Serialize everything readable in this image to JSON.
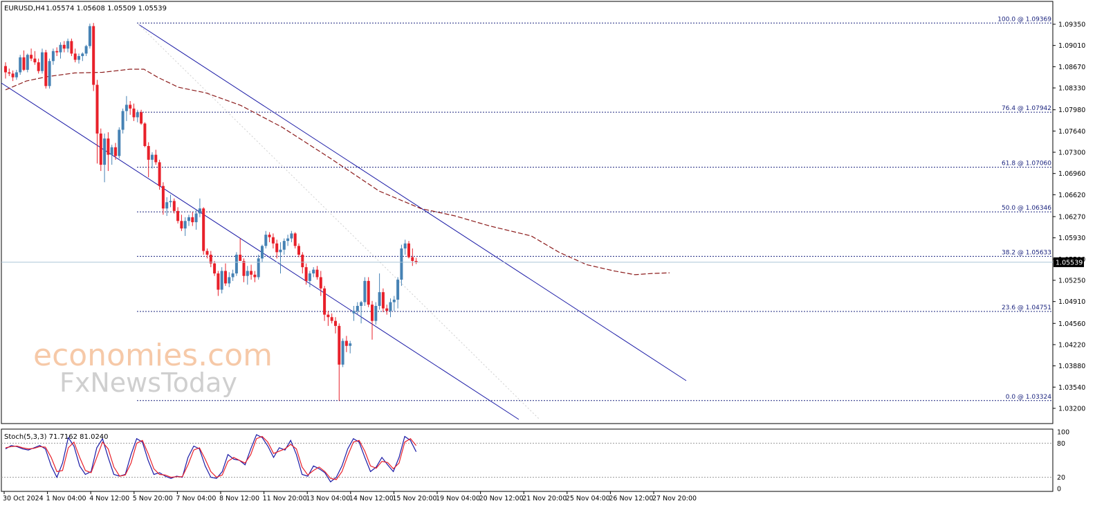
{
  "header": {
    "symbol": "EURUSD,H4",
    "ohlc": "1.05574 1.05608 1.05509 1.05539"
  },
  "watermark": {
    "line1": "economies.com",
    "line2": "FxNewsToday"
  },
  "chart_data": [
    {
      "type": "candlestick",
      "title": "EURUSD,H4",
      "ylim": [
        1.032,
        1.0955
      ],
      "y_ticks": [
        "1.09350",
        "1.09010",
        "1.08670",
        "1.08330",
        "1.07980",
        "1.07640",
        "1.07300",
        "1.06960",
        "1.06620",
        "1.06270",
        "1.05930",
        "1.05590",
        "1.05250",
        "1.04910",
        "1.04560",
        "1.04220",
        "1.03880",
        "1.03540",
        "1.03200"
      ],
      "x_ticks": [
        "30 Oct 2024",
        "1 Nov 04:00",
        "4 Nov 12:00",
        "5 Nov 20:00",
        "7 Nov 04:00",
        "8 Nov 12:00",
        "11 Nov 20:00",
        "13 Nov 04:00",
        "14 Nov 12:00",
        "15 Nov 20:00",
        "19 Nov 04:00",
        "20 Nov 12:00",
        "21 Nov 20:00",
        "25 Nov 04:00",
        "26 Nov 12:00",
        "27 Nov 20:00"
      ],
      "current_price": "1.05539",
      "colors": {
        "up": "#4682b4",
        "down": "#e8202a",
        "fib": "#1a237e",
        "channel": "#1a1aa6",
        "ma": "#8b1a1a"
      },
      "fibonacci": [
        {
          "label": "100.0 @ 1.09369",
          "value": 1.09369
        },
        {
          "label": "76.4 @ 1.07942",
          "value": 1.07942
        },
        {
          "label": "61.8 @ 1.07060",
          "value": 1.0706
        },
        {
          "label": "50.0 @ 1.06346",
          "value": 1.06346
        },
        {
          "label": "38.2 @ 1.05633",
          "value": 1.05633
        },
        {
          "label": "23.6 @ 1.04751",
          "value": 1.04751
        },
        {
          "label": "0.0 @ 1.03324",
          "value": 1.03324
        }
      ],
      "candles": [
        [
          1.0868,
          1.0874,
          1.0848,
          1.0858
        ],
        [
          1.0858,
          1.0864,
          1.0852,
          1.0856
        ],
        [
          1.0856,
          1.0861,
          1.0844,
          1.085
        ],
        [
          1.085,
          1.0862,
          1.0846,
          1.0858
        ],
        [
          1.0858,
          1.0886,
          1.0854,
          1.0882
        ],
        [
          1.0882,
          1.0893,
          1.086,
          1.0862
        ],
        [
          1.0862,
          1.0888,
          1.0858,
          1.0886
        ],
        [
          1.0886,
          1.0896,
          1.0876,
          1.088
        ],
        [
          1.088,
          1.0892,
          1.087,
          1.0874
        ],
        [
          1.0874,
          1.088,
          1.0856,
          1.086
        ],
        [
          1.086,
          1.0896,
          1.0856,
          1.089
        ],
        [
          1.089,
          1.0894,
          1.0832,
          1.0836
        ],
        [
          1.0836,
          1.088,
          1.0832,
          1.0876
        ],
        [
          1.0876,
          1.0896,
          1.087,
          1.0892
        ],
        [
          1.0892,
          1.0898,
          1.0884,
          1.089
        ],
        [
          1.089,
          1.0906,
          1.088,
          1.0902
        ],
        [
          1.0902,
          1.0908,
          1.089,
          1.0896
        ],
        [
          1.0896,
          1.0912,
          1.089,
          1.0908
        ],
        [
          1.0908,
          1.0912,
          1.0884,
          1.0888
        ],
        [
          1.0888,
          1.0896,
          1.0874,
          1.0878
        ],
        [
          1.0878,
          1.0888,
          1.0872,
          1.0884
        ],
        [
          1.0884,
          1.089,
          1.0876,
          1.0888
        ],
        [
          1.0888,
          1.0902,
          1.0884,
          1.09
        ],
        [
          1.09,
          1.0936,
          1.0896,
          1.0932
        ],
        [
          1.0932,
          1.0937,
          1.0828,
          1.0838
        ],
        [
          1.0838,
          1.0846,
          1.0712,
          1.076
        ],
        [
          1.076,
          1.0768,
          1.07,
          1.071
        ],
        [
          1.071,
          1.076,
          1.0682,
          1.0752
        ],
        [
          1.0752,
          1.0762,
          1.07,
          1.0726
        ],
        [
          1.0726,
          1.0742,
          1.071,
          1.0738
        ],
        [
          1.0738,
          1.0745,
          1.0718,
          1.0724
        ],
        [
          1.0724,
          1.077,
          1.072,
          1.0766
        ],
        [
          1.0766,
          1.08,
          1.076,
          1.0796
        ],
        [
          1.0796,
          1.082,
          1.078,
          1.0806
        ],
        [
          1.0806,
          1.0812,
          1.079,
          1.08
        ],
        [
          1.08,
          1.0808,
          1.078,
          1.0786
        ],
        [
          1.0786,
          1.0798,
          1.0778,
          1.0794
        ],
        [
          1.0794,
          1.0798,
          1.0774,
          1.0776
        ],
        [
          1.0776,
          1.0778,
          1.0738,
          1.074
        ],
        [
          1.074,
          1.0746,
          1.069,
          1.0718
        ],
        [
          1.0718,
          1.073,
          1.0704,
          1.0726
        ],
        [
          1.0726,
          1.0734,
          1.071,
          1.0714
        ],
        [
          1.0714,
          1.0718,
          1.067,
          1.0676
        ],
        [
          1.0676,
          1.0682,
          1.063,
          1.064
        ],
        [
          1.064,
          1.0658,
          1.0628,
          1.065
        ],
        [
          1.065,
          1.0662,
          1.0642,
          1.0652
        ],
        [
          1.0652,
          1.0656,
          1.0632,
          1.0636
        ],
        [
          1.0636,
          1.0642,
          1.0616,
          1.062
        ],
        [
          1.062,
          1.063,
          1.0604,
          1.0608
        ],
        [
          1.0608,
          1.0626,
          1.0596,
          1.062
        ],
        [
          1.062,
          1.063,
          1.0612,
          1.0626
        ],
        [
          1.0626,
          1.0634,
          1.0612,
          1.0618
        ],
        [
          1.0618,
          1.0638,
          1.0606,
          1.0632
        ],
        [
          1.0632,
          1.0656,
          1.0626,
          1.064
        ],
        [
          1.064,
          1.0642,
          1.0566,
          1.0572
        ],
        [
          1.0572,
          1.0576,
          1.056,
          1.0566
        ],
        [
          1.0566,
          1.0572,
          1.0546,
          1.0552
        ],
        [
          1.0552,
          1.0556,
          1.0532,
          1.0536
        ],
        [
          1.0536,
          1.054,
          1.05,
          1.051
        ],
        [
          1.051,
          1.0546,
          1.0504,
          1.054
        ],
        [
          1.054,
          1.0552,
          1.0516,
          1.052
        ],
        [
          1.052,
          1.0538,
          1.0514,
          1.053
        ],
        [
          1.053,
          1.0542,
          1.0524,
          1.0536
        ],
        [
          1.0536,
          1.057,
          1.0532,
          1.0566
        ],
        [
          1.0566,
          1.0592,
          1.0556,
          1.0556
        ],
        [
          1.0556,
          1.056,
          1.0522,
          1.0532
        ],
        [
          1.0532,
          1.0548,
          1.0518,
          1.054
        ],
        [
          1.054,
          1.055,
          1.0526,
          1.0534
        ],
        [
          1.0534,
          1.054,
          1.0522,
          1.053
        ],
        [
          1.053,
          1.0566,
          1.0526,
          1.056
        ],
        [
          1.056,
          1.0582,
          1.0554,
          1.058
        ],
        [
          1.058,
          1.0604,
          1.0576,
          1.0598
        ],
        [
          1.0598,
          1.0602,
          1.0586,
          1.0594
        ],
        [
          1.0594,
          1.06,
          1.0576,
          1.0584
        ],
        [
          1.0584,
          1.059,
          1.056,
          1.057
        ],
        [
          1.057,
          1.0586,
          1.0536,
          1.0574
        ],
        [
          1.0574,
          1.0592,
          1.0566,
          1.0588
        ],
        [
          1.0588,
          1.0598,
          1.058,
          1.0592
        ],
        [
          1.0592,
          1.0604,
          1.0586,
          1.06
        ],
        [
          1.06,
          1.0602,
          1.0576,
          1.058
        ],
        [
          1.058,
          1.0584,
          1.0562,
          1.0566
        ],
        [
          1.0566,
          1.057,
          1.0536,
          1.0546
        ],
        [
          1.0546,
          1.0552,
          1.0518,
          1.0524
        ],
        [
          1.0524,
          1.054,
          1.0514,
          1.0536
        ],
        [
          1.0536,
          1.0546,
          1.053,
          1.0542
        ],
        [
          1.0542,
          1.0548,
          1.0526,
          1.053
        ],
        [
          1.053,
          1.054,
          1.05,
          1.0512
        ],
        [
          1.0512,
          1.0516,
          1.046,
          1.047
        ],
        [
          1.047,
          1.0476,
          1.0452,
          1.0466
        ],
        [
          1.0466,
          1.0472,
          1.0456,
          1.046
        ],
        [
          1.046,
          1.0466,
          1.044,
          1.0452
        ],
        [
          1.0452,
          1.0456,
          1.0332,
          1.039
        ],
        [
          1.039,
          1.0432,
          1.0386,
          1.0428
        ],
        [
          1.0428,
          1.0436,
          1.041,
          1.042
        ],
        [
          1.042,
          1.0428,
          1.0408,
          1.0424
        ],
        [
          1.0472,
          1.0484,
          1.046,
          1.0476
        ],
        [
          1.0476,
          1.049,
          1.047,
          1.0484
        ],
        [
          1.0484,
          1.0492,
          1.0456,
          1.049
        ],
        [
          1.049,
          1.053,
          1.0484,
          1.0524
        ],
        [
          1.0524,
          1.053,
          1.0482,
          1.0486
        ],
        [
          1.0486,
          1.0492,
          1.043,
          1.046
        ],
        [
          1.046,
          1.049,
          1.0454,
          1.0484
        ],
        [
          1.0484,
          1.0536,
          1.0478,
          1.0506
        ],
        [
          1.0506,
          1.0512,
          1.0474,
          1.048
        ],
        [
          1.048,
          1.0486,
          1.047,
          1.0476
        ],
        [
          1.0476,
          1.0496,
          1.0466,
          1.049
        ],
        [
          1.049,
          1.05,
          1.0476,
          1.0494
        ],
        [
          1.0494,
          1.053,
          1.048,
          1.0526
        ],
        [
          1.0526,
          1.0582,
          1.0516,
          1.0576
        ],
        [
          1.0576,
          1.059,
          1.0566,
          1.0584
        ],
        [
          1.0584,
          1.0588,
          1.056,
          1.0562
        ],
        [
          1.0562,
          1.0576,
          1.0548,
          1.0556
        ],
        [
          1.0556,
          1.0561,
          1.0551,
          1.0554
        ]
      ],
      "moving_average": [
        [
          0,
          1.083
        ],
        [
          30,
          1.0844
        ],
        [
          60,
          1.0851
        ],
        [
          100,
          1.0857
        ],
        [
          140,
          1.0858
        ],
        [
          180,
          1.0863
        ],
        [
          200,
          1.0863
        ],
        [
          220,
          1.085
        ],
        [
          250,
          1.0834
        ],
        [
          290,
          1.0825
        ],
        [
          340,
          1.0805
        ],
        [
          400,
          1.077
        ],
        [
          470,
          1.072
        ],
        [
          540,
          1.0668
        ],
        [
          600,
          1.064
        ],
        [
          650,
          1.0628
        ],
        [
          700,
          1.0612
        ],
        [
          760,
          1.0596
        ],
        [
          800,
          1.057
        ],
        [
          840,
          1.055
        ],
        [
          880,
          1.054
        ],
        [
          910,
          1.0534
        ],
        [
          935,
          1.0536
        ],
        [
          960,
          1.0537
        ]
      ]
    },
    {
      "type": "line",
      "title": "Stoch(5,3,3) 71.7162 81.0240",
      "ylim": [
        0,
        100
      ],
      "y_ticks": [
        "100",
        "80",
        "20",
        "0"
      ],
      "levels": [
        80,
        20
      ],
      "series": [
        {
          "name": "Stoch",
          "color": "#1a1aa6",
          "values": [
            70,
            76,
            74,
            70,
            68,
            72,
            76,
            70,
            40,
            20,
            45,
            90,
            75,
            40,
            25,
            30,
            72,
            88,
            55,
            25,
            22,
            25,
            60,
            88,
            82,
            50,
            25,
            28,
            22,
            18,
            22,
            20,
            55,
            75,
            70,
            40,
            20,
            18,
            30,
            60,
            52,
            50,
            42,
            70,
            95,
            90,
            75,
            55,
            72,
            68,
            85,
            60,
            25,
            22,
            40,
            35,
            28,
            12,
            20,
            40,
            70,
            88,
            82,
            55,
            30,
            38,
            55,
            42,
            30,
            55,
            92,
            85,
            65
          ]
        },
        {
          "name": "Signal",
          "color": "#e8202a",
          "values": [
            72,
            74,
            75,
            72,
            70,
            71,
            74,
            73,
            55,
            30,
            32,
            72,
            82,
            55,
            32,
            28,
            55,
            82,
            70,
            38,
            22,
            24,
            45,
            80,
            85,
            62,
            35,
            25,
            24,
            20,
            21,
            21,
            42,
            68,
            72,
            52,
            30,
            20,
            24,
            48,
            55,
            50,
            45,
            60,
            88,
            92,
            82,
            62,
            66,
            70,
            78,
            70,
            38,
            24,
            32,
            38,
            30,
            18,
            16,
            30,
            58,
            82,
            85,
            66,
            40,
            36,
            48,
            46,
            35,
            45,
            82,
            88,
            76
          ]
        }
      ]
    }
  ]
}
